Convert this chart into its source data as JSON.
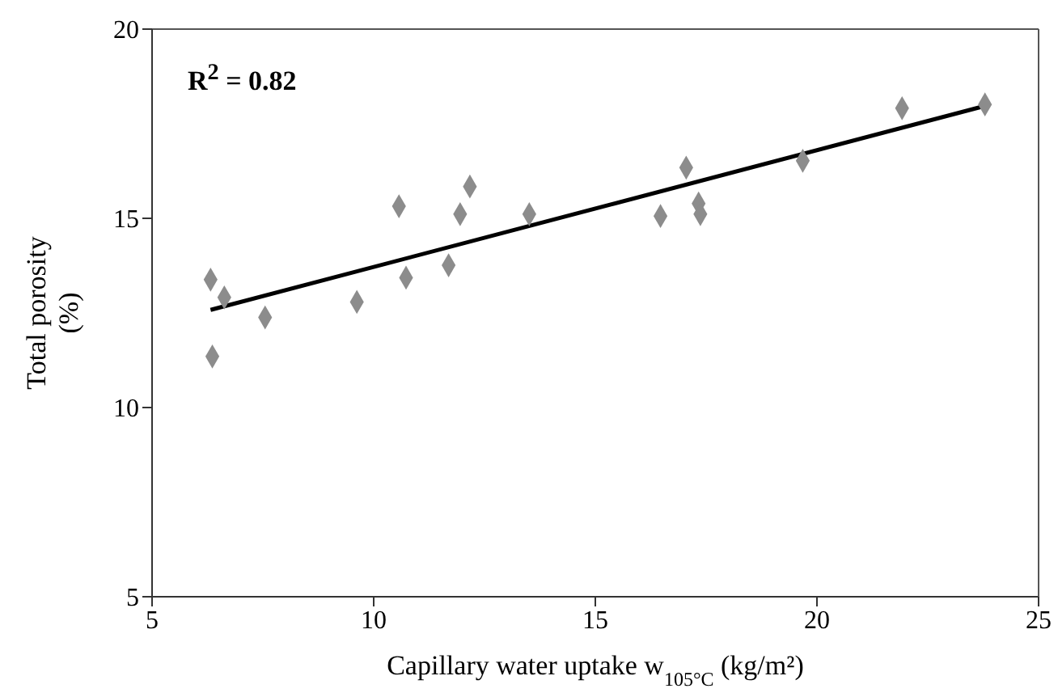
{
  "chart_data": {
    "type": "scatter",
    "xlabel": "Capillary water uptake w$_{105°C}$ (kg/m²)",
    "ylabel": "Total porosity\n(%)",
    "annotations": [
      "R$^{2}$ = 0.82"
    ],
    "xlim": [
      5,
      25
    ],
    "xticks": [
      5,
      10,
      15,
      20,
      25
    ],
    "ylim": [
      5,
      20
    ],
    "yticks": [
      5,
      10,
      15,
      20
    ],
    "marker": "diamond",
    "series": [
      {
        "color": "#8c8c8c",
        "x": [
          6.32,
          6.63,
          6.36,
          7.55,
          9.62,
          10.57,
          10.73,
          11.69,
          11.95,
          12.17,
          13.51,
          16.47,
          17.05,
          17.33,
          17.37,
          19.68,
          21.92,
          23.79
        ],
        "values": [
          13.38,
          12.91,
          11.35,
          12.38,
          12.79,
          15.32,
          13.43,
          13.76,
          15.11,
          15.84,
          15.11,
          15.06,
          16.34,
          15.39,
          15.11,
          16.52,
          17.91,
          18.01
        ]
      },
      {
        "type": "line",
        "color": "#000000",
        "marker": "none",
        "line_style": "solid",
        "x": [
          6.32,
          23.79
        ],
        "values": [
          12.58,
          17.97
        ]
      }
    ]
  }
}
